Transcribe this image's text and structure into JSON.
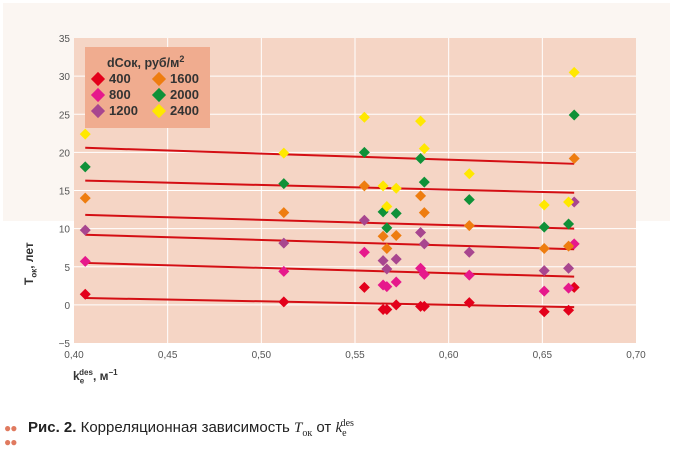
{
  "chart_data": {
    "type": "scatter",
    "title": "",
    "xlabel": "k_e^des, м−1",
    "ylabel": "Tок, лет",
    "xlim": [
      0.4,
      0.7
    ],
    "ylim": [
      -5,
      35
    ],
    "xticks": [
      "0,40",
      "0,45",
      "0,50",
      "0,55",
      "0,60",
      "0,65",
      "0,70"
    ],
    "yticks": [
      "35",
      "30",
      "25",
      "20",
      "15",
      "10",
      "5",
      "0",
      "−5"
    ],
    "grid": true,
    "legend": {
      "title": "dCок, руб/м²",
      "placement": "top-left"
    },
    "x": [
      0.406,
      0.512,
      0.555,
      0.565,
      0.567,
      0.572,
      0.585,
      0.587,
      0.611,
      0.651,
      0.664,
      0.667
    ],
    "series": [
      {
        "name": "400",
        "color": "#e3001b",
        "values": [
          1.4,
          0.4,
          2.3,
          -0.6,
          -0.6,
          0.0,
          -0.2,
          -0.2,
          0.3,
          -0.9,
          -0.7,
          2.3
        ],
        "trend": [
          0.9,
          -0.3
        ]
      },
      {
        "name": "800",
        "color": "#e6198c",
        "values": [
          5.7,
          4.4,
          6.9,
          2.6,
          2.4,
          3.0,
          4.8,
          4.0,
          3.9,
          1.8,
          2.2,
          8.0
        ],
        "trend": [
          5.5,
          3.7
        ]
      },
      {
        "name": "1200",
        "color": "#a8468f",
        "values": [
          9.8,
          8.1,
          11.1,
          5.8,
          4.7,
          6.0,
          9.5,
          8.0,
          6.9,
          4.5,
          4.8,
          13.5
        ],
        "trend": [
          9.2,
          7.3
        ]
      },
      {
        "name": "1600",
        "color": "#ee7d10",
        "values": [
          14.0,
          12.1,
          15.6,
          9.0,
          7.4,
          9.1,
          14.3,
          12.1,
          10.4,
          7.4,
          7.7,
          19.2
        ],
        "trend": [
          11.8,
          10.0
        ]
      },
      {
        "name": "2000",
        "color": "#0f9138",
        "values": [
          18.1,
          15.9,
          20.0,
          12.2,
          10.1,
          12.0,
          19.2,
          16.1,
          13.8,
          10.2,
          10.6,
          24.9
        ],
        "trend": [
          16.3,
          14.7
        ]
      },
      {
        "name": "2400",
        "color": "#ffe800",
        "values": [
          22.4,
          19.9,
          24.6,
          15.6,
          12.9,
          15.3,
          24.1,
          20.5,
          17.2,
          13.1,
          13.5,
          30.5
        ],
        "trend": [
          20.6,
          18.5
        ]
      }
    ],
    "trend_color": "#d40f14"
  },
  "legend_title": "dCок, руб/м",
  "legend_sup": "2",
  "ylabel_main": "T",
  "ylabel_sub": "ок",
  "ylabel_rest": ", лет",
  "xlabel_main": "k",
  "xlabel_sub": "e",
  "xlabel_sup": "des",
  "xlabel_rest": ", м",
  "xlabel_exp": "−1",
  "caption": {
    "label": "Рис. 2.",
    "text": "Корреляционная зависимость ",
    "var": "T",
    "var_sub": "ок",
    "mid": " от ",
    "var2": "k",
    "var2_sub": "e",
    "var2_sup": "des"
  }
}
